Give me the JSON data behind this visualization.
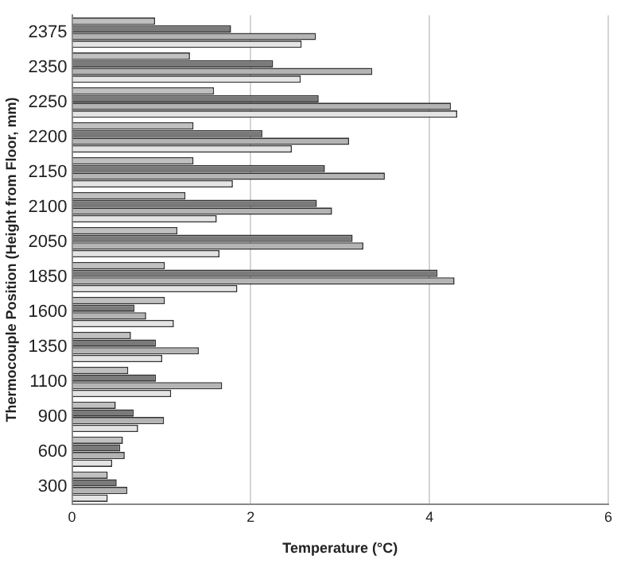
{
  "chart_data": {
    "type": "bar",
    "orientation": "horizontal",
    "xlabel": "Temperature (°C)",
    "ylabel": "Thermocouple Position (Height from Floor, mm)",
    "categories": [
      "2375",
      "2350",
      "2250",
      "2200",
      "2150",
      "2100",
      "2050",
      "1850",
      "1600",
      "1350",
      "1100",
      "900",
      "600",
      "300"
    ],
    "series": [
      {
        "color": "#c0c0c0",
        "values": [
          0.93,
          1.32,
          1.59,
          1.36,
          1.36,
          1.27,
          1.18,
          1.04,
          1.04,
          0.66,
          0.63,
          0.49,
          0.57,
          0.4
        ]
      },
      {
        "color": "#7a7a7a",
        "values": [
          1.78,
          2.25,
          2.76,
          2.13,
          2.83,
          2.74,
          3.14,
          4.09,
          0.7,
          0.94,
          0.94,
          0.69,
          0.54,
          0.5
        ]
      },
      {
        "color": "#b4b4b4",
        "values": [
          2.73,
          3.36,
          4.24,
          3.1,
          3.5,
          2.91,
          3.26,
          4.28,
          0.83,
          1.42,
          1.68,
          1.03,
          0.59,
          0.62
        ]
      },
      {
        "color": "#e4e4e4",
        "values": [
          2.57,
          2.56,
          4.31,
          2.46,
          1.8,
          1.62,
          1.65,
          1.85,
          1.14,
          1.01,
          1.11,
          0.74,
          0.45,
          0.4
        ]
      }
    ],
    "xlim": [
      0,
      6
    ],
    "xticks": [
      0,
      2,
      4,
      6
    ],
    "grid": "x",
    "legend": false
  }
}
